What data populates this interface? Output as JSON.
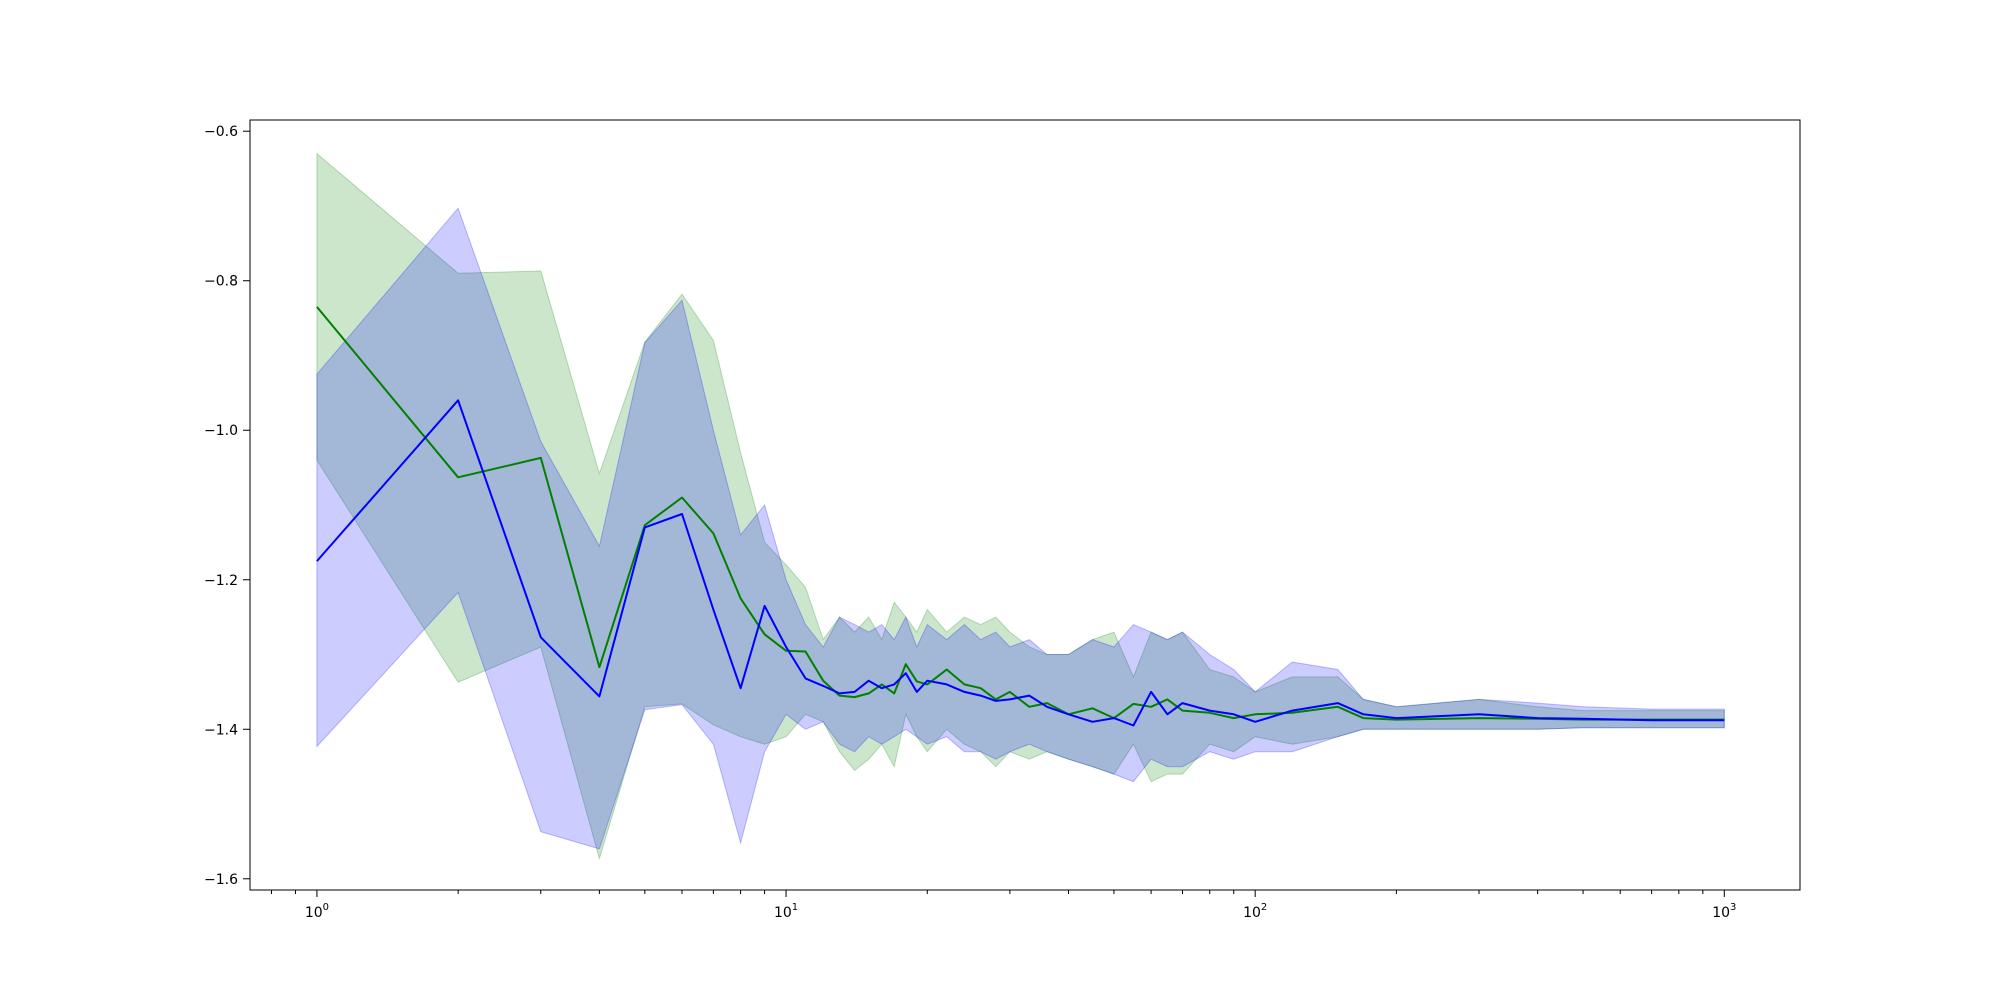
{
  "chart_data": {
    "type": "line",
    "title": "",
    "xlabel": "",
    "ylabel": "",
    "xscale": "log",
    "xlim": [
      0.72,
      1450
    ],
    "ylim": [
      -1.615,
      -0.585
    ],
    "grid": false,
    "legend": "none",
    "x_ticks": [
      {
        "value": 1,
        "base": "10",
        "exp": "0"
      },
      {
        "value": 10,
        "base": "10",
        "exp": "1"
      },
      {
        "value": 100,
        "base": "10",
        "exp": "2"
      },
      {
        "value": 1000,
        "base": "10",
        "exp": "3"
      }
    ],
    "y_ticks": [
      {
        "value": -0.6,
        "label": "−0.6"
      },
      {
        "value": -0.8,
        "label": "−0.8"
      },
      {
        "value": -1.0,
        "label": "−1.0"
      },
      {
        "value": -1.2,
        "label": "−1.2"
      },
      {
        "value": -1.4,
        "label": "−1.4"
      },
      {
        "value": -1.6,
        "label": "−1.6"
      }
    ],
    "series": [
      {
        "color": "#008000",
        "band_color": "#008000",
        "band_opacity": 0.2,
        "x": [
          1,
          2,
          3,
          4,
          5,
          6,
          7,
          8,
          9,
          10,
          11,
          12,
          13,
          14,
          15,
          16,
          17,
          18,
          19,
          20,
          22,
          24,
          26,
          28,
          30,
          33,
          36,
          40,
          45,
          50,
          55,
          60,
          65,
          70,
          80,
          90,
          100,
          120,
          150,
          170,
          200,
          300,
          400,
          500,
          700,
          1000
        ],
        "mean": [
          -0.835,
          -1.063,
          -1.037,
          -1.317,
          -1.127,
          -1.09,
          -1.138,
          -1.225,
          -1.273,
          -1.295,
          -1.296,
          -1.335,
          -1.355,
          -1.357,
          -1.352,
          -1.34,
          -1.352,
          -1.313,
          -1.336,
          -1.34,
          -1.32,
          -1.34,
          -1.345,
          -1.36,
          -1.35,
          -1.37,
          -1.365,
          -1.38,
          -1.372,
          -1.385,
          -1.366,
          -1.37,
          -1.36,
          -1.375,
          -1.378,
          -1.385,
          -1.38,
          -1.378,
          -1.37,
          -1.385,
          -1.387,
          -1.385,
          -1.386,
          -1.387,
          -1.387,
          -1.387
        ],
        "upper": [
          -0.63,
          -0.79,
          -0.787,
          -1.058,
          -0.882,
          -0.818,
          -0.88,
          -1.03,
          -1.15,
          -1.18,
          -1.21,
          -1.28,
          -1.25,
          -1.27,
          -1.25,
          -1.28,
          -1.23,
          -1.25,
          -1.27,
          -1.24,
          -1.27,
          -1.25,
          -1.26,
          -1.25,
          -1.27,
          -1.29,
          -1.3,
          -1.3,
          -1.28,
          -1.27,
          -1.33,
          -1.27,
          -1.28,
          -1.27,
          -1.32,
          -1.33,
          -1.35,
          -1.33,
          -1.33,
          -1.36,
          -1.37,
          -1.36,
          -1.37,
          -1.375,
          -1.375,
          -1.375
        ],
        "lower": [
          -1.04,
          -1.337,
          -1.29,
          -1.573,
          -1.37,
          -1.366,
          -1.394,
          -1.41,
          -1.42,
          -1.41,
          -1.38,
          -1.39,
          -1.43,
          -1.455,
          -1.44,
          -1.42,
          -1.45,
          -1.38,
          -1.41,
          -1.43,
          -1.4,
          -1.42,
          -1.43,
          -1.45,
          -1.43,
          -1.44,
          -1.43,
          -1.44,
          -1.45,
          -1.46,
          -1.42,
          -1.47,
          -1.46,
          -1.46,
          -1.42,
          -1.43,
          -1.41,
          -1.42,
          -1.41,
          -1.4,
          -1.4,
          -1.4,
          -1.4,
          -1.398,
          -1.398,
          -1.398
        ]
      },
      {
        "color": "#0000ff",
        "band_color": "#0000ff",
        "band_opacity": 0.2,
        "x": [
          1,
          2,
          3,
          4,
          5,
          6,
          7,
          8,
          9,
          10,
          11,
          12,
          13,
          14,
          15,
          16,
          17,
          18,
          19,
          20,
          22,
          24,
          26,
          28,
          30,
          33,
          36,
          40,
          45,
          50,
          55,
          60,
          65,
          70,
          80,
          90,
          100,
          120,
          150,
          170,
          200,
          300,
          400,
          500,
          700,
          1000
        ],
        "mean": [
          -1.175,
          -0.96,
          -1.277,
          -1.356,
          -1.13,
          -1.112,
          -1.24,
          -1.345,
          -1.235,
          -1.29,
          -1.332,
          -1.342,
          -1.352,
          -1.35,
          -1.335,
          -1.345,
          -1.34,
          -1.325,
          -1.35,
          -1.335,
          -1.34,
          -1.35,
          -1.355,
          -1.362,
          -1.36,
          -1.355,
          -1.37,
          -1.38,
          -1.39,
          -1.385,
          -1.395,
          -1.35,
          -1.38,
          -1.365,
          -1.375,
          -1.38,
          -1.39,
          -1.375,
          -1.365,
          -1.38,
          -1.385,
          -1.38,
          -1.385,
          -1.386,
          -1.388,
          -1.388
        ],
        "upper": [
          -0.925,
          -0.703,
          -1.015,
          -1.155,
          -0.883,
          -0.826,
          -1.0,
          -1.14,
          -1.1,
          -1.2,
          -1.26,
          -1.29,
          -1.25,
          -1.26,
          -1.27,
          -1.26,
          -1.28,
          -1.25,
          -1.29,
          -1.26,
          -1.28,
          -1.26,
          -1.28,
          -1.27,
          -1.29,
          -1.28,
          -1.3,
          -1.3,
          -1.28,
          -1.29,
          -1.26,
          -1.27,
          -1.28,
          -1.27,
          -1.3,
          -1.32,
          -1.35,
          -1.31,
          -1.32,
          -1.36,
          -1.37,
          -1.36,
          -1.365,
          -1.37,
          -1.373,
          -1.373
        ],
        "lower": [
          -1.423,
          -1.217,
          -1.537,
          -1.56,
          -1.374,
          -1.367,
          -1.42,
          -1.552,
          -1.43,
          -1.38,
          -1.4,
          -1.39,
          -1.42,
          -1.43,
          -1.41,
          -1.42,
          -1.41,
          -1.4,
          -1.41,
          -1.42,
          -1.41,
          -1.43,
          -1.43,
          -1.44,
          -1.43,
          -1.42,
          -1.43,
          -1.44,
          -1.45,
          -1.46,
          -1.47,
          -1.44,
          -1.45,
          -1.45,
          -1.43,
          -1.44,
          -1.43,
          -1.43,
          -1.41,
          -1.4,
          -1.4,
          -1.4,
          -1.4,
          -1.398,
          -1.398,
          -1.398
        ]
      }
    ]
  }
}
